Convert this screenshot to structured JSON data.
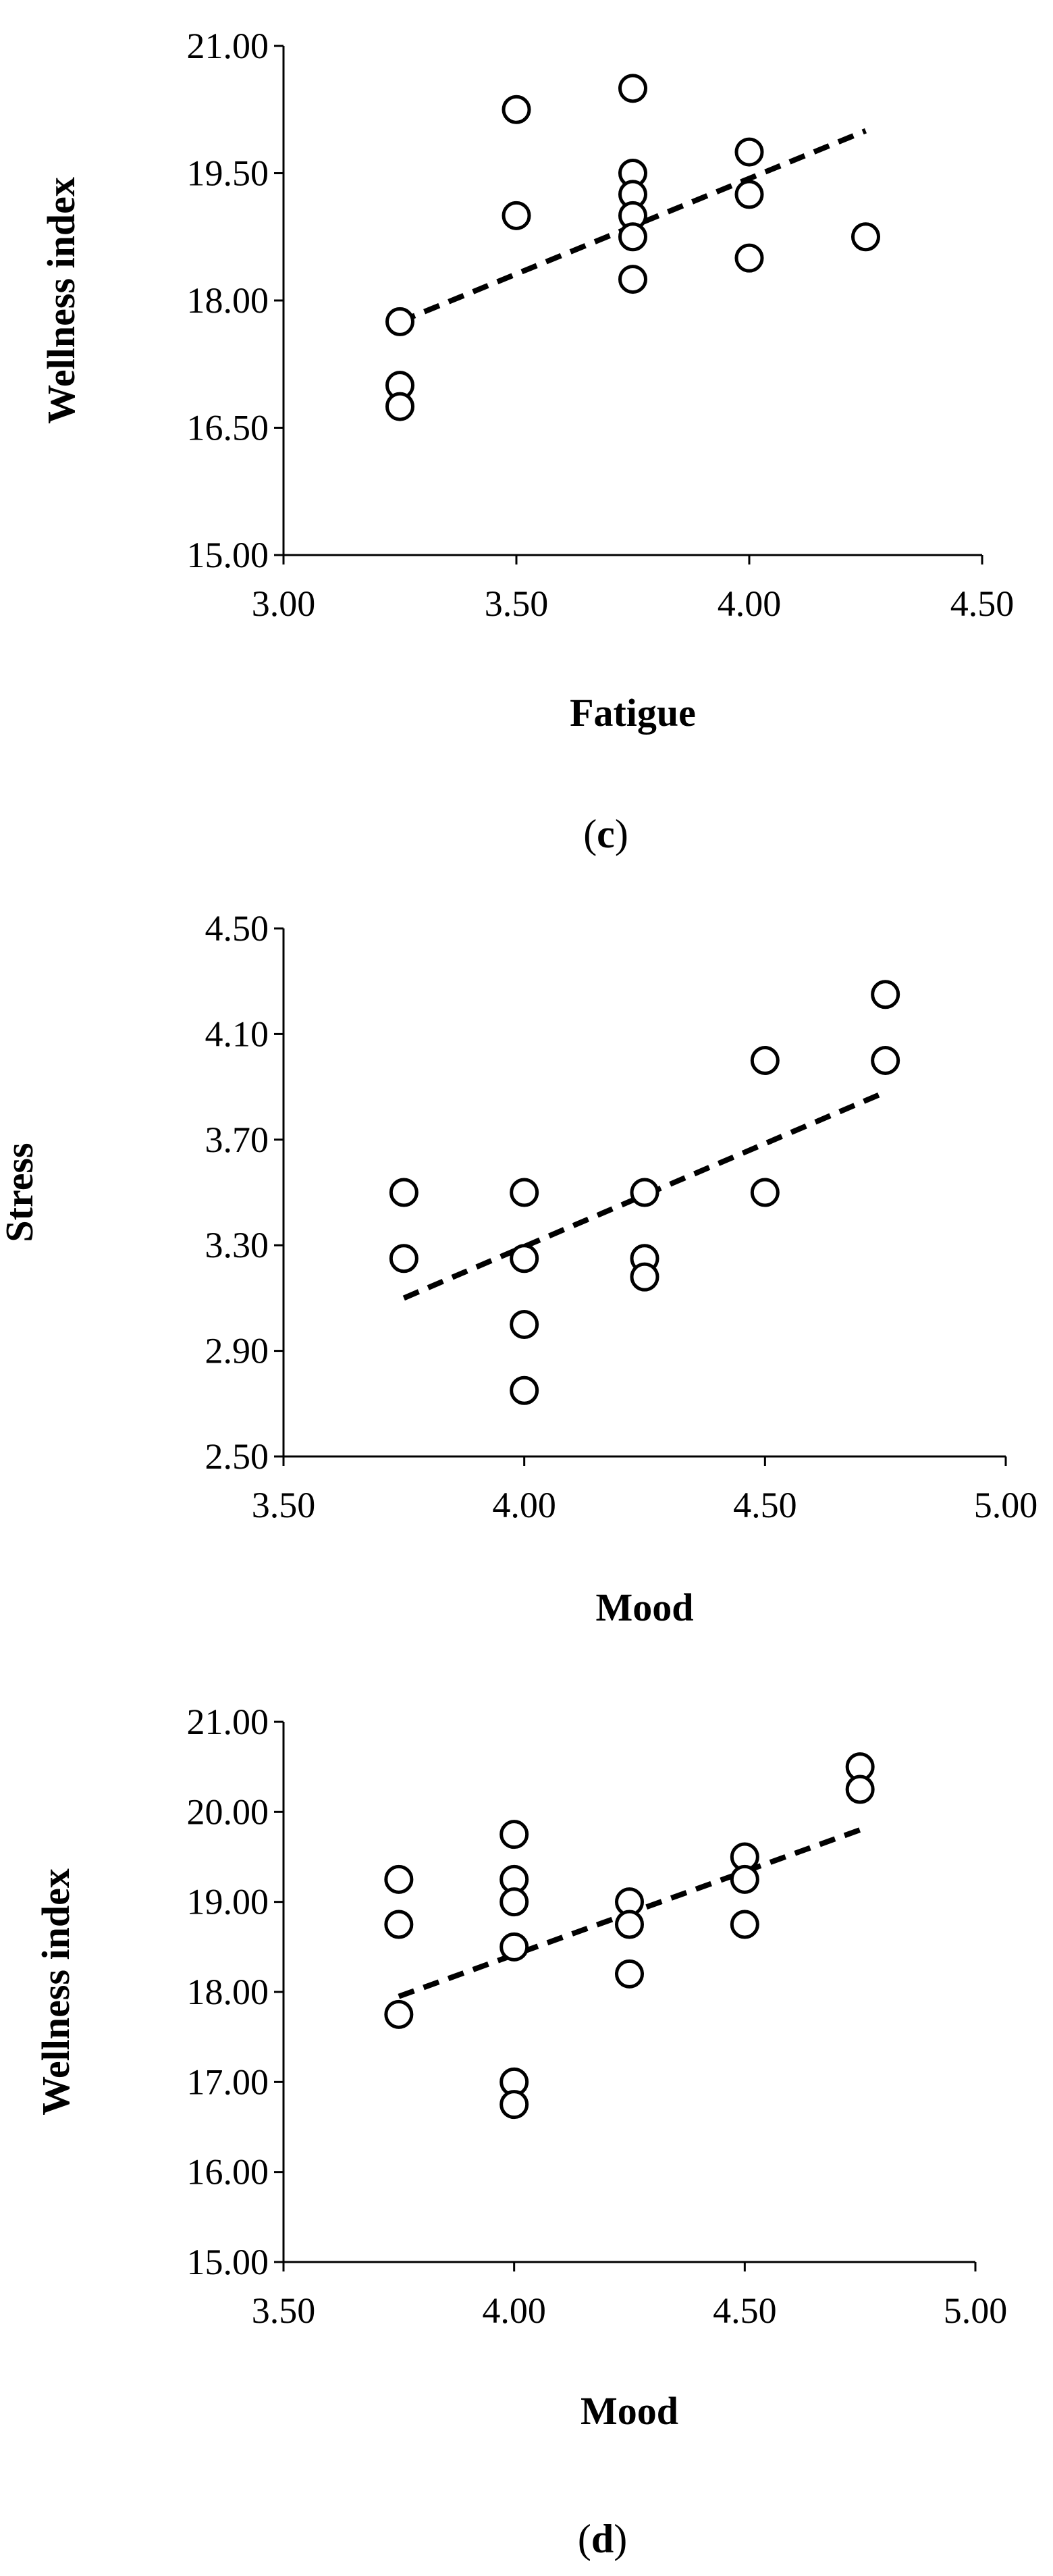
{
  "chart_data": [
    {
      "type": "scatter",
      "id": "c",
      "title": "",
      "xlabel": "Fatigue",
      "ylabel": "Wellness index",
      "xlim": [
        3.0,
        4.5
      ],
      "ylim": [
        15.0,
        21.0
      ],
      "x_ticks": [
        "3.00",
        "3.50",
        "4.00",
        "4.50"
      ],
      "y_ticks": [
        "15.00",
        "16.50",
        "18.00",
        "19.50",
        "21.00"
      ],
      "points": [
        {
          "x": 3.25,
          "y": 17.75
        },
        {
          "x": 3.25,
          "y": 17.0
        },
        {
          "x": 3.25,
          "y": 16.75
        },
        {
          "x": 3.5,
          "y": 20.25
        },
        {
          "x": 3.5,
          "y": 19.0
        },
        {
          "x": 3.75,
          "y": 20.5
        },
        {
          "x": 3.75,
          "y": 19.5
        },
        {
          "x": 3.75,
          "y": 19.25
        },
        {
          "x": 3.75,
          "y": 19.0
        },
        {
          "x": 3.75,
          "y": 18.75
        },
        {
          "x": 3.75,
          "y": 18.25
        },
        {
          "x": 4.0,
          "y": 19.75
        },
        {
          "x": 4.0,
          "y": 19.25
        },
        {
          "x": 4.0,
          "y": 18.5
        },
        {
          "x": 4.25,
          "y": 18.75
        }
      ],
      "trendline": {
        "x1": 3.25,
        "y1": 17.75,
        "x2": 4.25,
        "y2": 20.0,
        "style": "dashed"
      },
      "caption_letter": "c"
    },
    {
      "type": "scatter",
      "id": "stress",
      "title": "",
      "xlabel": "Mood",
      "ylabel": "Stress",
      "xlim": [
        3.5,
        5.0
      ],
      "ylim": [
        2.5,
        4.5
      ],
      "x_ticks": [
        "3.50",
        "4.00",
        "4.50",
        "5.00"
      ],
      "y_ticks": [
        "2.50",
        "2.90",
        "3.30",
        "3.70",
        "4.10",
        "4.50"
      ],
      "points": [
        {
          "x": 3.75,
          "y": 3.5
        },
        {
          "x": 3.75,
          "y": 3.25
        },
        {
          "x": 4.0,
          "y": 3.5
        },
        {
          "x": 4.0,
          "y": 3.25
        },
        {
          "x": 4.0,
          "y": 3.0
        },
        {
          "x": 4.0,
          "y": 2.75
        },
        {
          "x": 4.25,
          "y": 3.5
        },
        {
          "x": 4.25,
          "y": 3.25
        },
        {
          "x": 4.25,
          "y": 3.18
        },
        {
          "x": 4.5,
          "y": 4.0
        },
        {
          "x": 4.5,
          "y": 3.5
        },
        {
          "x": 4.75,
          "y": 4.25
        },
        {
          "x": 4.75,
          "y": 4.0
        }
      ],
      "trendline": {
        "x1": 3.75,
        "y1": 3.1,
        "x2": 4.75,
        "y2": 3.88,
        "style": "dashed"
      }
    },
    {
      "type": "scatter",
      "id": "d",
      "title": "",
      "xlabel": "Mood",
      "ylabel": "Wellness index",
      "xlim": [
        3.5,
        5.0
      ],
      "ylim": [
        15.0,
        21.0
      ],
      "x_ticks": [
        "3.50",
        "4.00",
        "4.50",
        "5.00"
      ],
      "y_ticks": [
        "15.00",
        "16.00",
        "17.00",
        "18.00",
        "19.00",
        "20.00",
        "21.00"
      ],
      "points": [
        {
          "x": 3.75,
          "y": 19.25
        },
        {
          "x": 3.75,
          "y": 18.75
        },
        {
          "x": 3.75,
          "y": 17.75
        },
        {
          "x": 4.0,
          "y": 19.75
        },
        {
          "x": 4.0,
          "y": 19.25
        },
        {
          "x": 4.0,
          "y": 19.0
        },
        {
          "x": 4.0,
          "y": 18.5
        },
        {
          "x": 4.0,
          "y": 17.0
        },
        {
          "x": 4.0,
          "y": 16.75
        },
        {
          "x": 4.25,
          "y": 19.0
        },
        {
          "x": 4.25,
          "y": 18.75
        },
        {
          "x": 4.25,
          "y": 18.2
        },
        {
          "x": 4.5,
          "y": 19.5
        },
        {
          "x": 4.5,
          "y": 19.25
        },
        {
          "x": 4.5,
          "y": 18.75
        },
        {
          "x": 4.75,
          "y": 20.5
        },
        {
          "x": 4.75,
          "y": 20.25
        }
      ],
      "trendline": {
        "x1": 3.75,
        "y1": 17.95,
        "x2": 4.75,
        "y2": 19.8,
        "style": "dashed"
      },
      "caption_letter": "d"
    }
  ]
}
